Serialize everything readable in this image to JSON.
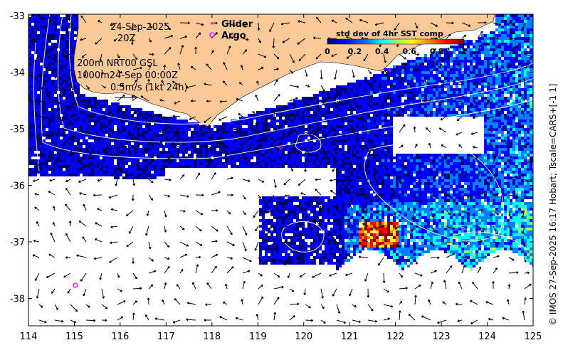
{
  "map": {
    "date_line1": "24-Sep-2025",
    "date_line2": "20Z",
    "contour_info_line1": "200m  NRT00 GSL",
    "contour_info_line2": "1000m24-Sep 00:00Z",
    "vector_scale_label": "0.5m/s (1kt 24h)",
    "legend_glider": "Glider",
    "legend_argo": "Argo",
    "colorbar_title": "std dev of 4hr SST comp",
    "colorbar_ticks": [
      "0",
      "0.2",
      "0.4",
      "0.6",
      "0.8",
      "1"
    ],
    "credit": "© IMOS 27-Sep-2025 16:17 Hobart; Tscale=CARS+[-1 1]",
    "x_ticks": [
      "114",
      "115",
      "116",
      "117",
      "118",
      "119",
      "120",
      "121",
      "122",
      "123",
      "124",
      "125"
    ],
    "y_ticks": [
      "-33",
      "-34",
      "-35",
      "-36",
      "-37",
      "-38"
    ],
    "colors": {
      "land": "#fbc898",
      "glider": "#ff00ff",
      "argo": "#ff00ff",
      "colorbar_stops": [
        "#00007f",
        "#0000ff",
        "#0080ff",
        "#00ffff",
        "#80ff80",
        "#ffff00",
        "#ff8000",
        "#ff0000",
        "#7f0000"
      ]
    }
  }
}
